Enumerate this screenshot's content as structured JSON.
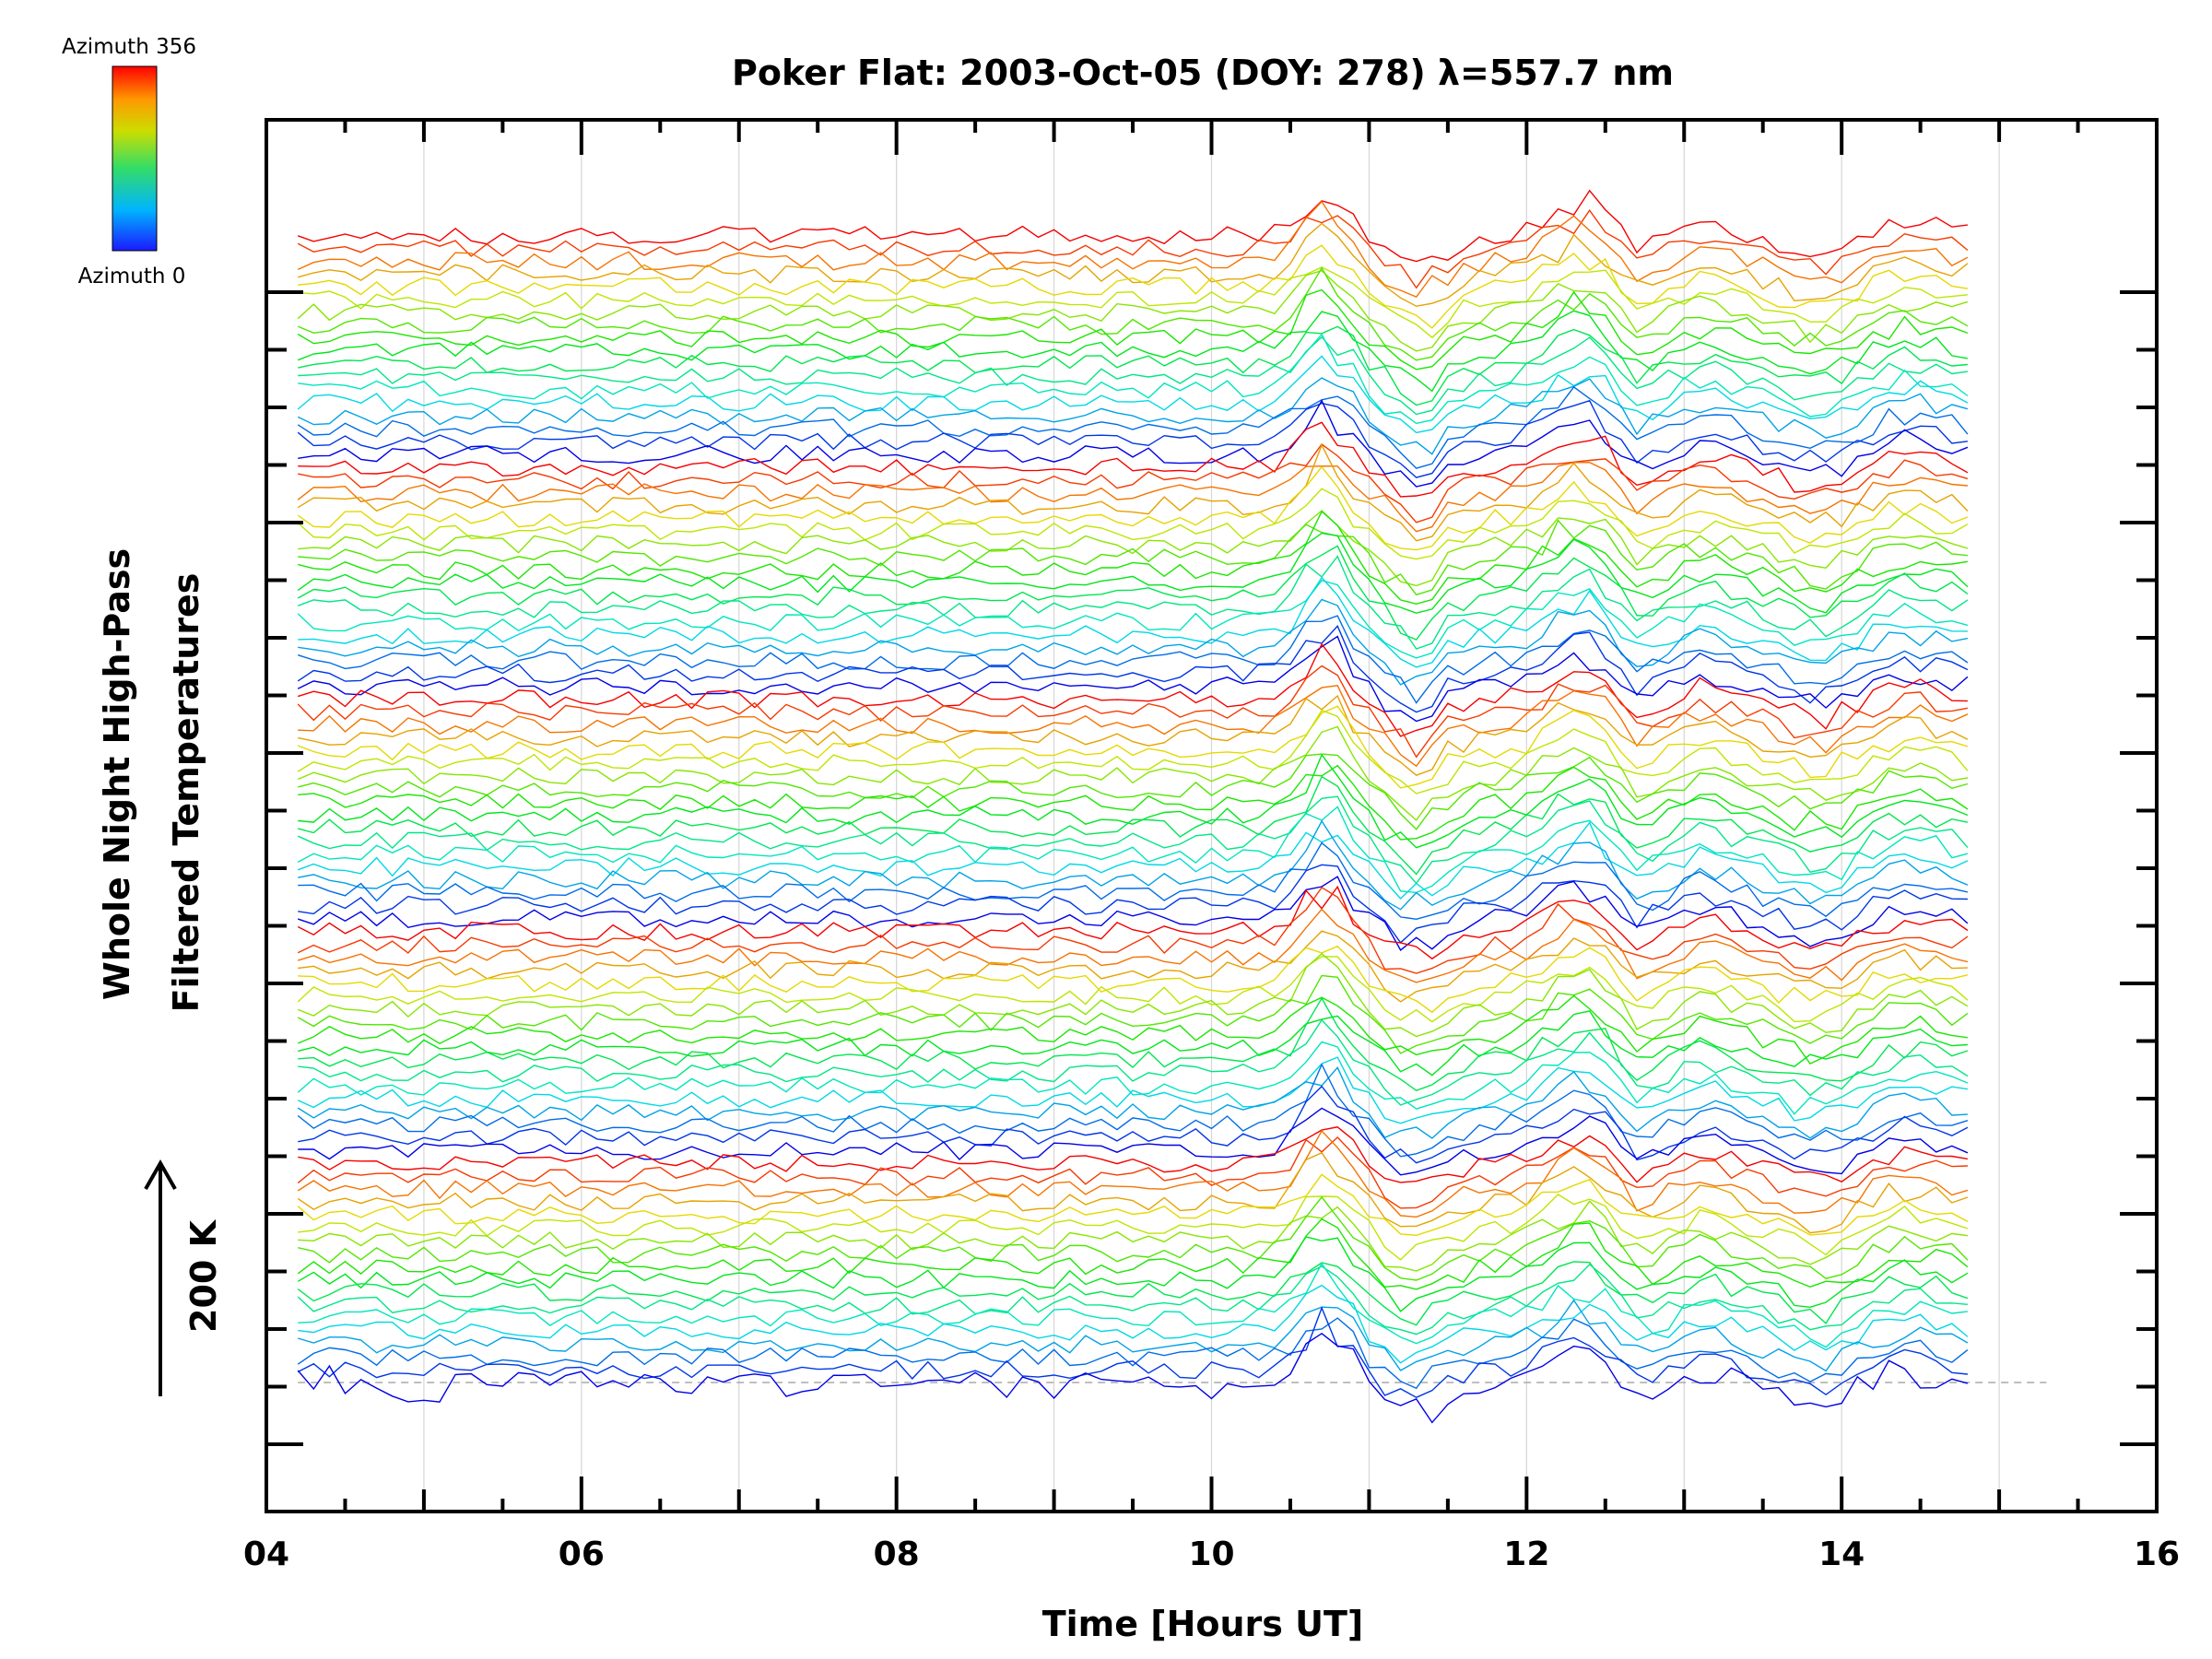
{
  "chart_data": {
    "type": "line",
    "title": "Poker Flat: 2003-Oct-05 (DOY: 278) λ=557.7 nm",
    "xlabel": "Time [Hours UT]",
    "ylabel_line1": "Whole Night High-Pass",
    "ylabel_line2": "Filtered Temperatures",
    "scale_bar_label": "200 K",
    "xlim": [
      4,
      16
    ],
    "x_ticks": [
      "04",
      "06",
      "08",
      "10",
      "12",
      "14",
      "16"
    ],
    "x_minor_step": 0.5,
    "grid": "vertical gridlines every hour (light gray)",
    "baseline": "dashed gray line at bottom trace offset",
    "colorbar": {
      "top_label": "Azimuth 356",
      "bottom_label": "Azimuth 0",
      "colormap": "rainbow (blue → cyan → green → yellow → red)",
      "colors": [
        "#1a1aff",
        "#00b4ff",
        "#33dd66",
        "#ccdd00",
        "#ff9900",
        "#ff0000"
      ]
    },
    "data_x_range": [
      4.2,
      14.8
    ],
    "n_traces": 90,
    "common_features": [
      {
        "time": 10.75,
        "note": "sharp positive peak"
      },
      {
        "time": 11.3,
        "note": "dip"
      },
      {
        "time": 12.35,
        "note": "positive peak"
      },
      {
        "time": 12.65,
        "note": "dip"
      },
      {
        "time": 13.8,
        "note": "dip"
      }
    ]
  }
}
